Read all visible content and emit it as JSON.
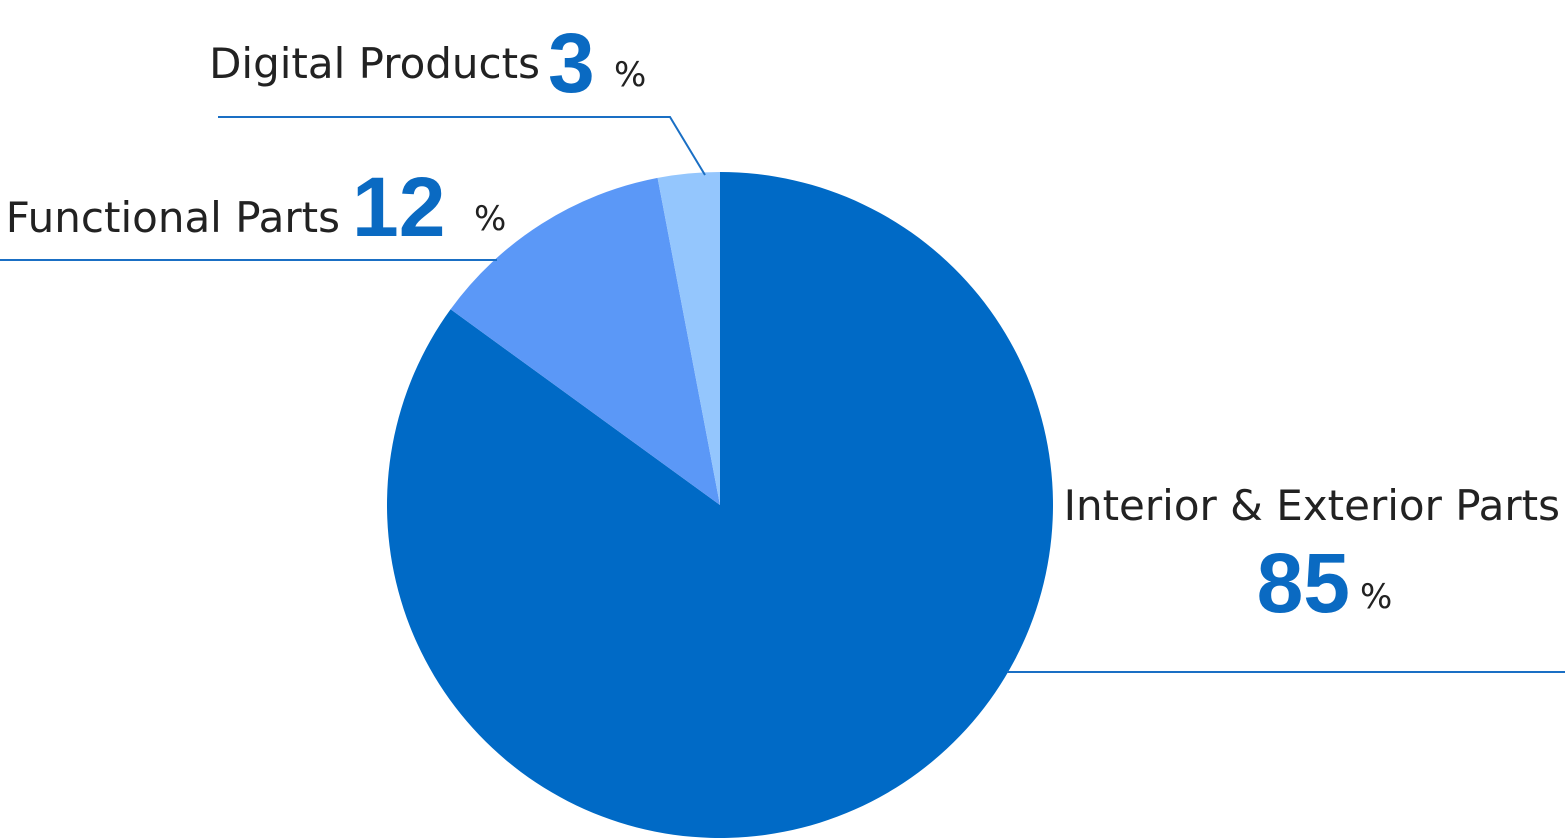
{
  "chart_data": {
    "type": "pie",
    "categories": [
      "Interior & Exterior Parts",
      "Functional Parts",
      "Digital Products"
    ],
    "values": [
      85,
      12,
      3
    ],
    "colors": [
      "#006ac6",
      "#5b98f7",
      "#94c6fd"
    ],
    "unit": "%"
  }
}
